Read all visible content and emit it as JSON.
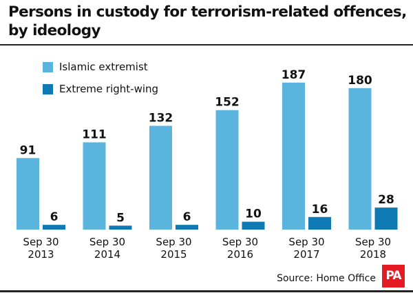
{
  "chart_data": {
    "type": "bar",
    "title": "Persons in custody for terrorism-related offences, by ideology",
    "categories": [
      [
        "Sep 30",
        "2013"
      ],
      [
        "Sep 30",
        "2014"
      ],
      [
        "Sep 30",
        "2015"
      ],
      [
        "Sep 30",
        "2016"
      ],
      [
        "Sep 30",
        "2017"
      ],
      [
        "Sep 30",
        "2018"
      ]
    ],
    "series": [
      {
        "name": "Islamic extremist",
        "color": "#5ab4de",
        "values": [
          91,
          111,
          132,
          152,
          187,
          180
        ]
      },
      {
        "name": "Extreme right-wing",
        "color": "#0e79b2",
        "values": [
          6,
          5,
          6,
          10,
          16,
          28
        ]
      }
    ],
    "xlabel": "",
    "ylabel": "",
    "ylim": [
      0,
      200
    ],
    "grid": false,
    "legend": "top-left",
    "source": "Source: Home Office",
    "logo": "PA"
  }
}
